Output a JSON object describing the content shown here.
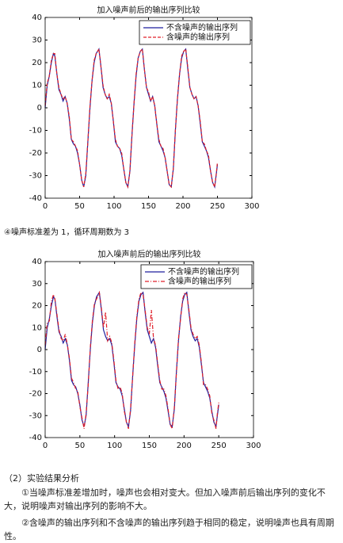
{
  "chart_data": [
    {
      "type": "line",
      "title": "加入噪声前后的输出序列比较",
      "x": [
        0,
        3,
        6,
        9,
        12,
        14,
        17,
        20,
        23,
        26,
        29,
        32,
        35,
        38,
        41,
        44,
        47,
        50,
        53,
        56,
        59,
        62,
        65,
        68,
        71,
        74,
        78,
        81,
        84,
        87,
        90,
        93,
        96,
        99,
        102,
        105,
        108,
        111,
        114,
        117,
        120,
        123,
        126,
        129,
        132,
        135,
        138,
        141,
        144,
        147,
        150,
        153,
        156,
        159,
        162,
        165,
        168,
        171,
        174,
        177,
        180,
        183,
        186,
        189,
        192,
        195,
        198,
        201,
        204,
        207,
        210,
        213,
        216,
        219,
        222,
        225,
        228,
        231,
        234,
        237,
        240,
        243,
        246,
        248,
        250
      ],
      "series": [
        {
          "name": "不含噪声的输出序列",
          "color": "#1f1f9e",
          "linestyle": "solid",
          "values": [
            0,
            10,
            14,
            20,
            24,
            23,
            15,
            8,
            6,
            3,
            5,
            2,
            -5,
            -14,
            -16,
            -17,
            -20,
            -25,
            -32,
            -35,
            -30,
            -15,
            0,
            12,
            20,
            24,
            26,
            18,
            9,
            6,
            4,
            5,
            2,
            -6,
            -15,
            -17,
            -18,
            -21,
            -27,
            -33,
            -35,
            -28,
            -12,
            2,
            14,
            22,
            25,
            26,
            17,
            9,
            6,
            3,
            5,
            1,
            -7,
            -15,
            -17,
            -19,
            -22,
            -28,
            -34,
            -35,
            -27,
            -10,
            4,
            15,
            22,
            25,
            26,
            17,
            9,
            6,
            4,
            5,
            1,
            -7,
            -15,
            -17,
            -19,
            -22,
            -28,
            -33,
            -35,
            -30,
            -25
          ]
        },
        {
          "name": "含噪声的输出序列",
          "color": "#e0202a",
          "linestyle": "dashed",
          "values": [
            1,
            11,
            14,
            21,
            24,
            24,
            15,
            9,
            6,
            4,
            5,
            2,
            -4,
            -14,
            -15,
            -17,
            -19,
            -25,
            -32,
            -35,
            -29,
            -15,
            1,
            12,
            21,
            24,
            26,
            18,
            10,
            6,
            4,
            6,
            2,
            -6,
            -14,
            -17,
            -18,
            -20,
            -27,
            -33,
            -35,
            -28,
            -12,
            2,
            15,
            22,
            25,
            26,
            17,
            9,
            7,
            3,
            5,
            1,
            -7,
            -14,
            -17,
            -18,
            -22,
            -28,
            -34,
            -35,
            -27,
            -10,
            4,
            15,
            23,
            25,
            26,
            18,
            9,
            6,
            4,
            5,
            1,
            -6,
            -15,
            -16,
            -19,
            -21,
            -28,
            -33,
            -35,
            -30,
            -24
          ]
        }
      ],
      "xlim": [
        0,
        300
      ],
      "xticks": [
        0,
        50,
        100,
        150,
        200,
        250,
        300
      ],
      "ylim": [
        -40,
        40
      ],
      "yticks": [
        -40,
        -30,
        -20,
        -10,
        0,
        10,
        20,
        30,
        40
      ],
      "legend": "upper right"
    },
    {
      "type": "line",
      "title": "加入噪声前后的输出序列比较",
      "x": [
        0,
        3,
        6,
        9,
        12,
        14,
        17,
        20,
        23,
        26,
        29,
        32,
        35,
        38,
        41,
        44,
        47,
        50,
        53,
        56,
        59,
        62,
        65,
        68,
        71,
        74,
        78,
        81,
        84,
        87,
        90,
        93,
        96,
        99,
        102,
        105,
        108,
        111,
        114,
        117,
        120,
        123,
        126,
        129,
        132,
        135,
        138,
        141,
        144,
        147,
        150,
        153,
        156,
        159,
        162,
        165,
        168,
        171,
        174,
        177,
        180,
        183,
        186,
        189,
        192,
        195,
        198,
        201,
        204,
        207,
        210,
        213,
        216,
        219,
        222,
        225,
        228,
        231,
        234,
        237,
        240,
        243,
        246,
        248,
        250
      ],
      "series": [
        {
          "name": "不含噪声的输出序列",
          "color": "#1f1f9e",
          "linestyle": "solid",
          "values": [
            0,
            10,
            14,
            20,
            24,
            23,
            15,
            8,
            6,
            3,
            5,
            2,
            -5,
            -14,
            -16,
            -17,
            -20,
            -25,
            -32,
            -35,
            -30,
            -15,
            0,
            12,
            20,
            24,
            26,
            18,
            9,
            6,
            4,
            5,
            2,
            -6,
            -15,
            -17,
            -18,
            -21,
            -27,
            -33,
            -35,
            -28,
            -12,
            2,
            14,
            22,
            25,
            26,
            17,
            9,
            6,
            3,
            5,
            1,
            -7,
            -15,
            -17,
            -19,
            -22,
            -28,
            -34,
            -35,
            -27,
            -10,
            4,
            15,
            22,
            25,
            26,
            17,
            9,
            6,
            4,
            5,
            1,
            -7,
            -15,
            -17,
            -19,
            -22,
            -28,
            -33,
            -35,
            -30,
            -25
          ]
        },
        {
          "name": "含噪声的输出序列",
          "color": "#e0202a",
          "linestyle": "dashdot",
          "values": [
            2,
            12,
            13,
            22,
            25,
            23,
            16,
            9,
            5,
            4,
            7,
            2,
            -4,
            -13,
            -15,
            -18,
            -19,
            -26,
            -31,
            -36,
            -29,
            -16,
            1,
            13,
            21,
            23,
            26,
            19,
            10,
            17,
            4,
            6,
            3,
            -5,
            -14,
            -18,
            -17,
            -20,
            -28,
            -33,
            -36,
            -27,
            -12,
            3,
            15,
            23,
            26,
            25,
            18,
            10,
            7,
            18,
            5,
            2,
            -6,
            -14,
            -18,
            -18,
            -21,
            -27,
            -34,
            -36,
            -26,
            -11,
            5,
            14,
            23,
            26,
            25,
            18,
            10,
            7,
            5,
            6,
            2,
            -6,
            -16,
            -16,
            -18,
            -21,
            -29,
            -32,
            -36,
            -29,
            -24
          ]
        }
      ],
      "xlim": [
        0,
        300
      ],
      "xticks": [
        0,
        50,
        100,
        150,
        200,
        250,
        300
      ],
      "ylim": [
        -40,
        40
      ],
      "yticks": [
        -40,
        -30,
        -20,
        -10,
        0,
        10,
        20,
        30,
        40
      ],
      "legend": "upper right"
    }
  ],
  "document": {
    "note": "④噪声标准差为 1，循环周期数为 3",
    "section": "（2）实验结果分析",
    "paragraphs": [
      "①当噪声标准差增加时，噪声也会相对变大。但加入噪声前后输出序列的变化不大，说明噪声对输出序列的影响不大。",
      "②含噪声的输出序列和不含噪声的输出序列趋于相同的稳定，说明噪声也具有周期性。"
    ]
  }
}
